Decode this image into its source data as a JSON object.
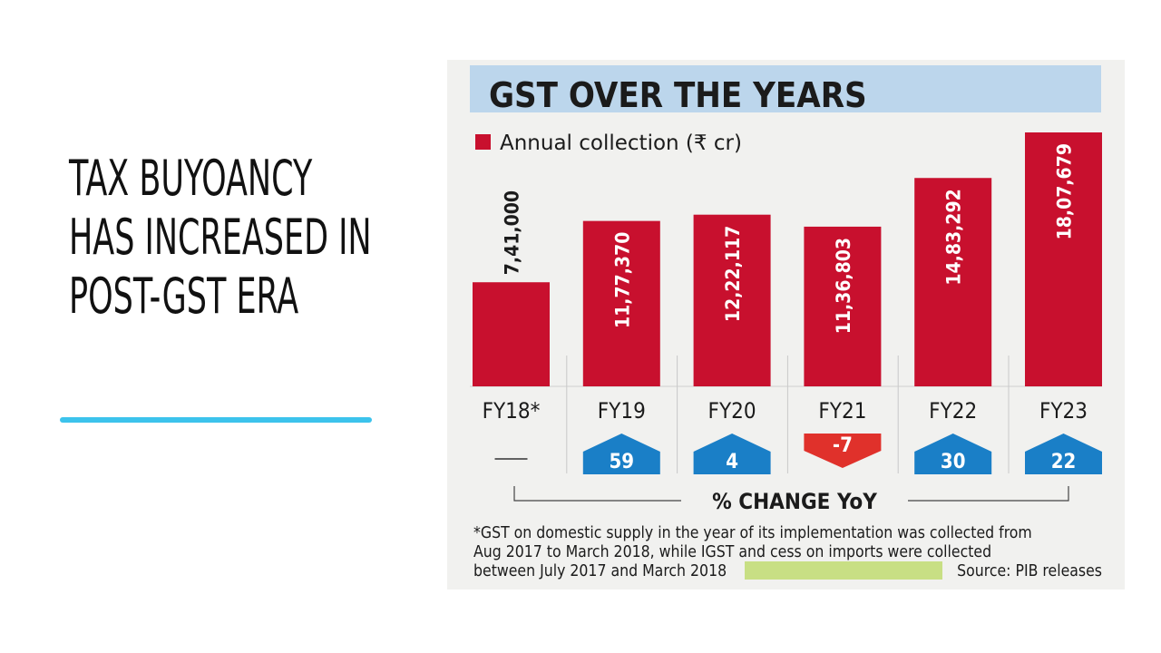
{
  "slide": {
    "title_lines": [
      "TAX BUYOANCY",
      "HAS INCREASED IN",
      "POST-GST ERA"
    ]
  },
  "chart_data": {
    "type": "bar",
    "title": "GST OVER THE YEARS",
    "legend": "Annual collection (₹ cr)",
    "categories": [
      "FY18*",
      "FY19",
      "FY20",
      "FY21",
      "FY22",
      "FY23"
    ],
    "values": [
      741000,
      1177370,
      1222117,
      1136803,
      1483292,
      1807679
    ],
    "value_labels": [
      "7,41,000",
      "11,77,370",
      "12,22,117",
      "11,36,803",
      "14,83,292",
      "18,07,679"
    ],
    "yoy_label": "% CHANGE YoY",
    "yoy_change": [
      null,
      59,
      4,
      -7,
      30,
      22
    ],
    "yoy_labels": [
      "—",
      "59",
      "4",
      "-7",
      "30",
      "22"
    ],
    "footnote_lines": [
      "*GST on domestic supply in the year of its implementation was collected from",
      "Aug 2017 to March 2018, while IGST and cess on imports were collected",
      "between July 2017 and March 2018"
    ],
    "source": "Source: PIB releases",
    "colors": {
      "bar": "#c8102e",
      "up": "#1a7fc7",
      "down": "#e0312b",
      "title_band": "#bcd6ec",
      "highlight": "#c8df84",
      "panel": "#f1f1ef"
    }
  }
}
